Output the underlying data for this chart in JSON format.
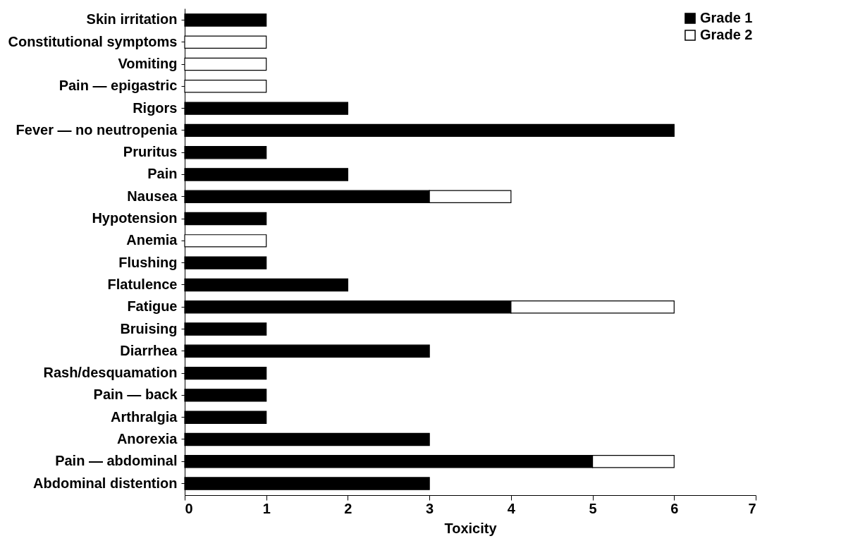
{
  "chart_data": {
    "type": "bar",
    "orientation": "horizontal",
    "stacked": true,
    "xlabel": "Toxicity",
    "xlim": [
      0,
      7
    ],
    "xticks": [
      0,
      1,
      2,
      3,
      4,
      5,
      6,
      7
    ],
    "grid": false,
    "legend": "top right",
    "categories": [
      "Skin irritation",
      "Constitutional symptoms",
      "Vomiting",
      "Pain — epigastric",
      "Rigors",
      "Fever — no neutropenia",
      "Pruritus",
      "Pain",
      "Nausea",
      "Hypotension",
      "Anemia",
      "Flushing",
      "Flatulence",
      "Fatigue",
      "Bruising",
      "Diarrhea",
      "Rash/desquamation",
      "Pain — back",
      "Arthralgia",
      "Anorexia",
      "Pain — abdominal",
      "Abdominal distention"
    ],
    "series": [
      {
        "name": "Grade 1",
        "color": "#000000",
        "values": [
          1,
          0,
          0,
          0,
          2,
          6,
          1,
          2,
          3,
          1,
          0,
          1,
          2,
          4,
          1,
          3,
          1,
          1,
          1,
          3,
          5,
          3
        ]
      },
      {
        "name": "Grade 2",
        "color": "#ffffff",
        "values": [
          0,
          1,
          1,
          1,
          0,
          0,
          0,
          0,
          1,
          0,
          1,
          0,
          0,
          2,
          0,
          0,
          0,
          0,
          0,
          0,
          1,
          0
        ]
      }
    ]
  }
}
